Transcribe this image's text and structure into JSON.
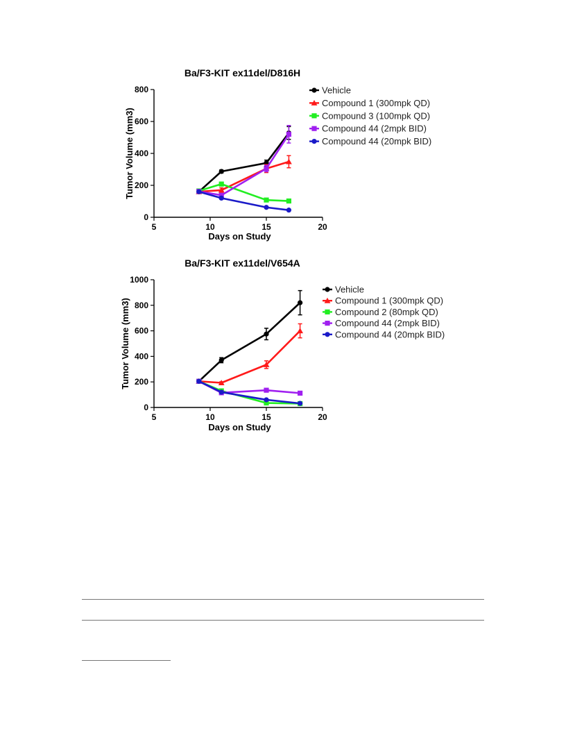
{
  "chart_data": [
    {
      "type": "line",
      "title": "Ba/F3-KIT ex11del/D816H",
      "xlabel": "Days on Study",
      "ylabel": "Tumor Volume (mm3)",
      "xlim": [
        5,
        20
      ],
      "ylim": [
        0,
        800
      ],
      "xticks": [
        5,
        10,
        15,
        20
      ],
      "yticks": [
        0,
        200,
        400,
        600,
        800
      ],
      "legend_position": "top-right",
      "series": [
        {
          "name": "Vehicle",
          "color": "#000000",
          "marker": "circle",
          "x": [
            9,
            11,
            15,
            17
          ],
          "y": [
            160,
            287,
            340,
            528
          ],
          "err": [
            8,
            10,
            18,
            40
          ]
        },
        {
          "name": "Compound 1 (300mpk QD)",
          "color": "#ff1a1a",
          "marker": "triangle",
          "x": [
            9,
            11,
            15,
            17
          ],
          "y": [
            160,
            170,
            305,
            348
          ],
          "err": [
            8,
            14,
            25,
            38
          ]
        },
        {
          "name": "Compound 3 (100mpk QD)",
          "color": "#22ee22",
          "marker": "square",
          "x": [
            9,
            11,
            15,
            17
          ],
          "y": [
            165,
            208,
            108,
            102
          ],
          "err": [
            6,
            12,
            8,
            12
          ]
        },
        {
          "name": "Compound 44 (2mpk BID)",
          "color": "#a020f0",
          "marker": "square",
          "x": [
            9,
            11,
            15,
            17
          ],
          "y": [
            162,
            138,
            305,
            520
          ],
          "err": [
            6,
            10,
            20,
            55
          ]
        },
        {
          "name": "Compound 44 (20mpk BID)",
          "color": "#1a1ac8",
          "marker": "circle",
          "x": [
            9,
            11,
            15,
            17
          ],
          "y": [
            160,
            120,
            62,
            45
          ],
          "err": [
            5,
            6,
            5,
            4
          ]
        }
      ]
    },
    {
      "type": "line",
      "title": "Ba/F3-KIT ex11del/V654A",
      "xlabel": "Days on Study",
      "ylabel": "Tumor Volume (mm3)",
      "xlim": [
        5,
        20
      ],
      "ylim": [
        0,
        1000
      ],
      "xticks": [
        5,
        10,
        15,
        20
      ],
      "yticks": [
        0,
        200,
        400,
        600,
        800,
        1000
      ],
      "legend_position": "top-right",
      "series": [
        {
          "name": "Vehicle",
          "color": "#000000",
          "marker": "circle",
          "x": [
            9,
            11,
            15,
            18
          ],
          "y": [
            205,
            370,
            575,
            820
          ],
          "err": [
            10,
            20,
            45,
            95
          ]
        },
        {
          "name": "Compound 1 (300mpk QD)",
          "color": "#ff1a1a",
          "marker": "triangle",
          "x": [
            9,
            11,
            15,
            18
          ],
          "y": [
            205,
            193,
            335,
            600
          ],
          "err": [
            10,
            8,
            30,
            55
          ]
        },
        {
          "name": "Compound 2 (80mpk QD)",
          "color": "#22ee22",
          "marker": "square",
          "x": [
            9,
            11,
            15,
            18
          ],
          "y": [
            205,
            130,
            35,
            30
          ],
          "err": [
            8,
            8,
            4,
            4
          ]
        },
        {
          "name": "Compound 44 (2mpk BID)",
          "color": "#a020f0",
          "marker": "square",
          "x": [
            9,
            11,
            15,
            18
          ],
          "y": [
            205,
            115,
            135,
            112
          ],
          "err": [
            8,
            8,
            8,
            8
          ]
        },
        {
          "name": "Compound 44 (20mpk BID)",
          "color": "#1a1ac8",
          "marker": "circle",
          "x": [
            9,
            11,
            15,
            18
          ],
          "y": [
            205,
            120,
            60,
            32
          ],
          "err": [
            8,
            6,
            5,
            4
          ]
        }
      ]
    }
  ]
}
